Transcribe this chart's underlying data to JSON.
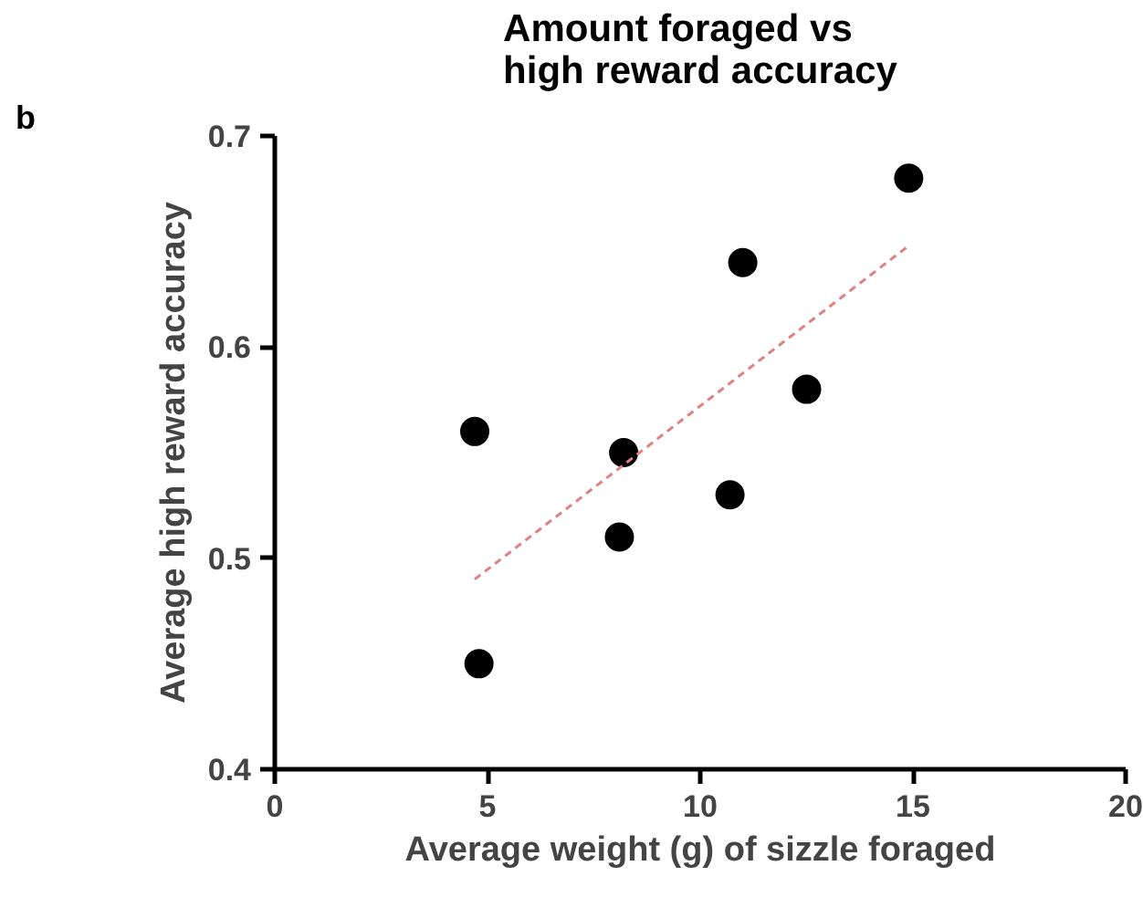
{
  "chart_data": {
    "type": "scatter",
    "title": "Amount foraged vs\nhigh reward accuracy",
    "xlabel": "Average weight (g) of sizzle foraged",
    "ylabel": "Average high reward accuracy",
    "annotations": [
      "b"
    ],
    "series": [
      {
        "type": "scatter",
        "color": "#000000",
        "marker": "circle",
        "x": [
          4.7,
          4.8,
          8.1,
          8.2,
          10.7,
          11.0,
          12.5,
          14.9
        ],
        "values": [
          0.56,
          0.45,
          0.51,
          0.55,
          0.53,
          0.64,
          0.58,
          0.68
        ]
      },
      {
        "type": "line",
        "color": "#e08080",
        "line_style": "dotted",
        "x": [
          4.7,
          14.9
        ],
        "values": [
          0.49,
          0.648
        ]
      }
    ],
    "xlim": [
      0,
      20
    ],
    "ylim": [
      0.4,
      0.7
    ],
    "xticks": [
      0,
      5,
      10,
      15,
      20
    ],
    "yticks": [
      0.4,
      0.5,
      0.6,
      0.7
    ],
    "grid": false
  }
}
